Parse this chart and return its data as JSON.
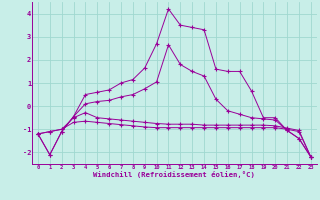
{
  "x": [
    0,
    1,
    2,
    3,
    4,
    5,
    6,
    7,
    8,
    9,
    10,
    11,
    12,
    13,
    14,
    15,
    16,
    17,
    18,
    19,
    20,
    21,
    22,
    23
  ],
  "line1": [
    -1.2,
    -2.1,
    -1.1,
    -0.45,
    0.5,
    0.6,
    0.7,
    1.0,
    1.15,
    1.65,
    2.7,
    4.2,
    3.5,
    3.4,
    3.3,
    1.6,
    1.5,
    1.5,
    0.65,
    -0.5,
    -0.5,
    -1.05,
    -1.4,
    -2.2
  ],
  "line2": [
    -1.2,
    -2.1,
    -1.1,
    -0.45,
    0.1,
    0.2,
    0.25,
    0.4,
    0.5,
    0.75,
    1.05,
    2.65,
    1.8,
    1.5,
    1.3,
    0.3,
    -0.2,
    -0.35,
    -0.5,
    -0.55,
    -0.6,
    -1.05,
    -1.4,
    -2.2
  ],
  "line3": [
    -1.2,
    -1.1,
    -1.0,
    -0.5,
    -0.28,
    -0.5,
    -0.55,
    -0.6,
    -0.65,
    -0.7,
    -0.75,
    -0.78,
    -0.78,
    -0.78,
    -0.82,
    -0.82,
    -0.82,
    -0.82,
    -0.82,
    -0.82,
    -0.85,
    -0.95,
    -1.05,
    -2.2
  ],
  "line4": [
    -1.2,
    -1.1,
    -1.0,
    -0.7,
    -0.65,
    -0.7,
    -0.75,
    -0.8,
    -0.85,
    -0.9,
    -0.93,
    -0.93,
    -0.93,
    -0.93,
    -0.93,
    -0.93,
    -0.93,
    -0.93,
    -0.93,
    -0.93,
    -0.93,
    -1.0,
    -1.1,
    -2.2
  ],
  "bg_color": "#c8eee8",
  "grid_color": "#a0d8d0",
  "line_color": "#990099",
  "xlabel": "Windchill (Refroidissement éolien,°C)",
  "ylim": [
    -2.5,
    4.5
  ],
  "xlim": [
    -0.5,
    23.5
  ],
  "yticks": [
    -2,
    -1,
    0,
    1,
    2,
    3,
    4
  ],
  "xticks": [
    0,
    1,
    2,
    3,
    4,
    5,
    6,
    7,
    8,
    9,
    10,
    11,
    12,
    13,
    14,
    15,
    16,
    17,
    18,
    19,
    20,
    21,
    22,
    23
  ]
}
